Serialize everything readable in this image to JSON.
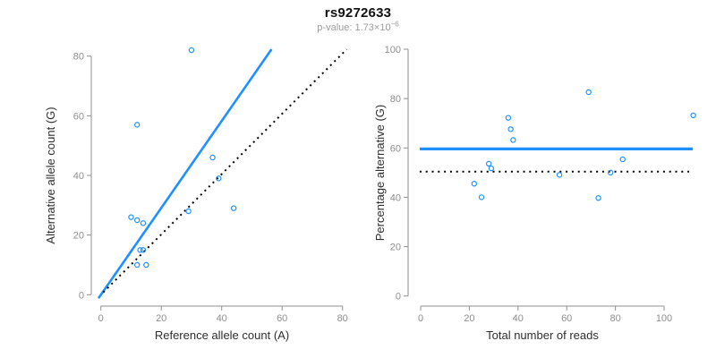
{
  "title": "rs9272633",
  "subtitle": {
    "text": "p-value: 1.73×10",
    "exp": "−6"
  },
  "colors": {
    "accent_blue": "#1E90FF",
    "dotted_black": "#000000",
    "axis_gray": "#909090",
    "tick_label_gray": "#8e8e8e",
    "axis_title_dark": "#2e2e2e",
    "title_black": "#111111",
    "subtitle_gray": "#9b9b9b"
  },
  "chart_data": [
    {
      "type": "scatter",
      "panel": "allele-counts",
      "xlabel": "Reference allele count (A)",
      "ylabel": "Alternative allele count (G)",
      "xlim": [
        0,
        80
      ],
      "ylim": [
        0,
        82
      ],
      "xticks": [
        0,
        20,
        40,
        60,
        80
      ],
      "yticks": [
        0,
        20,
        40,
        60,
        80
      ],
      "grid": "off",
      "legend": "none",
      "points": [
        [
          30,
          82
        ],
        [
          12,
          57
        ],
        [
          37,
          46
        ],
        [
          39,
          39
        ],
        [
          44,
          29
        ],
        [
          29,
          28
        ],
        [
          10,
          26
        ],
        [
          12,
          25
        ],
        [
          14,
          24
        ],
        [
          13,
          15
        ],
        [
          14,
          15
        ],
        [
          12,
          10
        ],
        [
          15,
          10
        ]
      ],
      "lines": [
        {
          "name": "fitted-proportion-line",
          "style": "solid",
          "color": "accent_blue",
          "slope": 1.47,
          "intercept": 0,
          "from": [
            -0.8,
            -1.2
          ],
          "to": [
            56.5,
            82.3
          ]
        },
        {
          "name": "identity-line",
          "style": "dotted",
          "color": "dotted_black",
          "slope": 1,
          "intercept": 0,
          "from": [
            0.8,
            0.8
          ],
          "to": [
            81.4,
            82.3
          ]
        }
      ]
    },
    {
      "type": "scatter",
      "panel": "percentage-vs-depth",
      "xlabel": "Total number of reads",
      "ylabel": "Percentage alternative (G)",
      "xlim": [
        0,
        112
      ],
      "ylim": [
        0,
        100
      ],
      "xticks": [
        0,
        20,
        40,
        60,
        80,
        100
      ],
      "yticks": [
        0,
        20,
        40,
        60,
        80,
        100
      ],
      "grid": "off",
      "legend": "none",
      "points": [
        [
          112,
          73.2
        ],
        [
          69,
          82.6
        ],
        [
          83,
          55.4
        ],
        [
          78,
          50.0
        ],
        [
          73,
          39.7
        ],
        [
          57,
          49.1
        ],
        [
          36,
          72.2
        ],
        [
          37,
          67.6
        ],
        [
          38,
          63.2
        ],
        [
          28,
          53.6
        ],
        [
          29,
          51.7
        ],
        [
          22,
          45.5
        ],
        [
          25,
          40.0
        ]
      ],
      "lines": [
        {
          "name": "mean-percentage-line",
          "style": "solid",
          "color": "accent_blue",
          "value": 59.6,
          "from": [
            -0.4,
            59.6
          ],
          "to": [
            111.8,
            59.6
          ]
        },
        {
          "name": "fifty-percent-line",
          "style": "dotted",
          "color": "dotted_black",
          "value": 50.4,
          "from": [
            -0.4,
            50.4
          ],
          "to": [
            110.3,
            50.4
          ]
        }
      ]
    }
  ]
}
